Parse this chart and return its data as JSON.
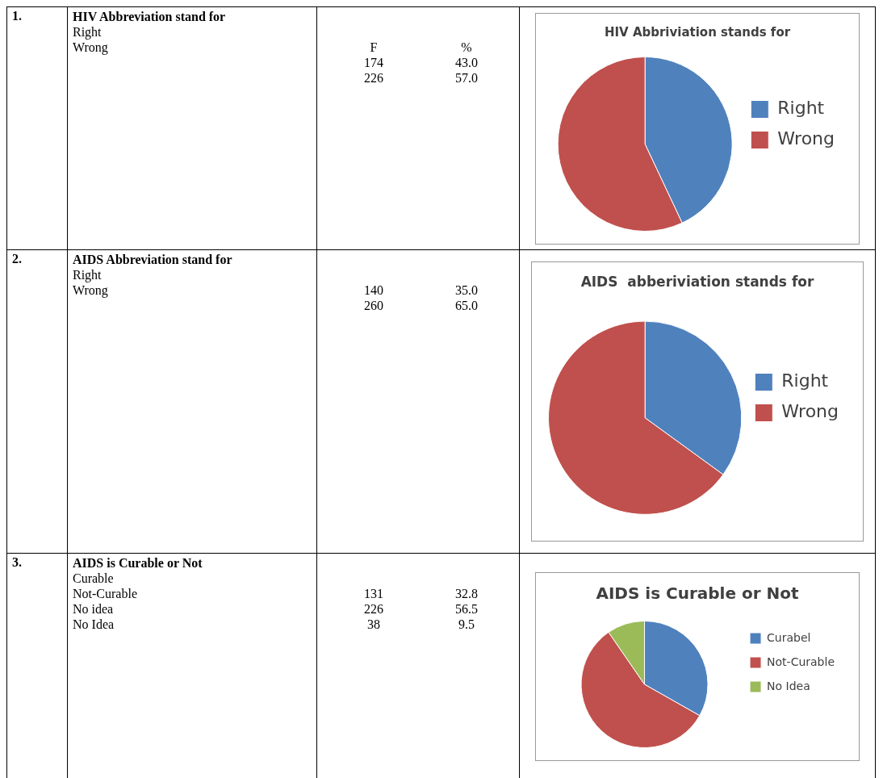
{
  "chart_data": [
    {
      "type": "other",
      "title": "HIV Abbreviation stand for",
      "categories": [
        "Right",
        "Wrong"
      ],
      "annotations": [
        "1.",
        "F",
        "%",
        "174",
        "43.0",
        "226",
        "57.0"
      ]
    },
    {
      "type": "pie",
      "title": "HIV Abbriviation stands for",
      "categories": [
        "Right",
        "Wrong"
      ],
      "values": [
        43,
        57
      ],
      "colors": [
        "#4f81bd",
        "#c0504d"
      ],
      "legend": "right"
    },
    {
      "type": "other",
      "title": "AIDS Abbreviation stand for",
      "categories": [
        "Right",
        "Wrong"
      ],
      "annotations": [
        "2.",
        "140",
        "35.0",
        "260",
        "65.0"
      ]
    },
    {
      "type": "pie",
      "title": "AIDS  abberiviation stands for",
      "categories": [
        "Right",
        "Wrong"
      ],
      "values": [
        35,
        65
      ],
      "colors": [
        "#4f81bd",
        "#c0504d"
      ],
      "legend": "right"
    },
    {
      "type": "other",
      "title": "AIDS is Curable or Not",
      "categories": [
        "Curable",
        "Not-Curable",
        "No idea",
        "No Idea"
      ],
      "annotations": [
        "3.",
        "131",
        "32.8",
        "226",
        "56.5",
        "38",
        "9.5"
      ]
    },
    {
      "type": "pie",
      "title": "AIDS is Curable or Not",
      "categories": [
        "Curabel",
        "Not-Curable",
        "No Idea"
      ],
      "values": [
        33.2,
        57.2,
        9.6
      ],
      "colors": [
        "#4f81bd",
        "#c0504d",
        "#9bbb59"
      ],
      "legend": "right"
    }
  ]
}
